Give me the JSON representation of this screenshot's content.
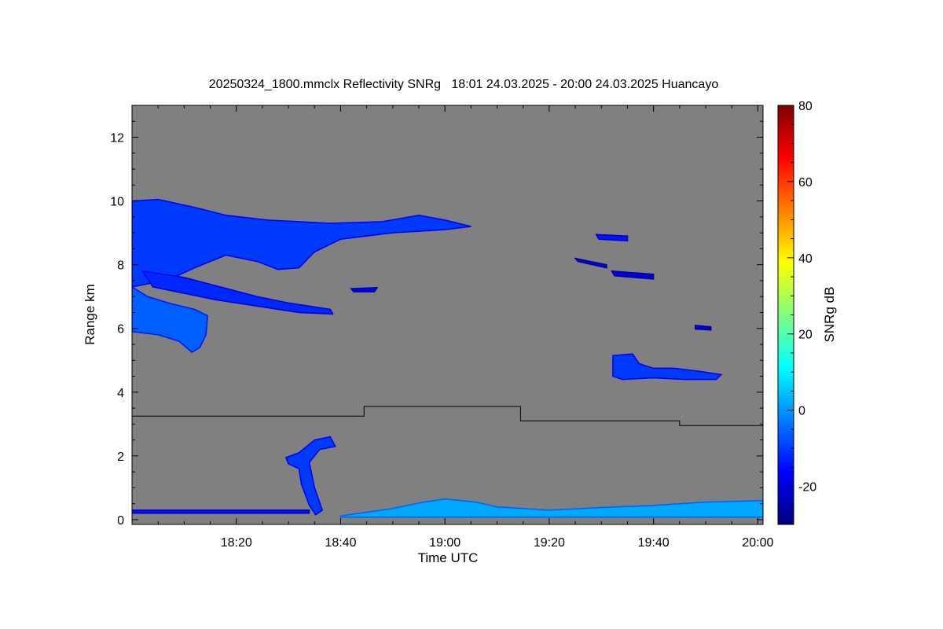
{
  "chart_data": {
    "type": "heatmap",
    "title": "20250324_1800.mmclx Reflectivity SNRg   18:01 24.03.2025 - 20:00 24.03.2025 Huancayo",
    "xlabel": "Time UTC",
    "ylabel": "Range km",
    "colorbar_label": "SNRg dB",
    "x_range_min": [
      0,
      121
    ],
    "y_range_km": [
      -0.15,
      13
    ],
    "color_range_db": [
      -30,
      80
    ],
    "x_ticks": [
      {
        "min": 20,
        "label": "18:20"
      },
      {
        "min": 40,
        "label": "18:40"
      },
      {
        "min": 60,
        "label": "19:00"
      },
      {
        "min": 80,
        "label": "19:20"
      },
      {
        "min": 100,
        "label": "19:40"
      },
      {
        "min": 120,
        "label": "20:00"
      }
    ],
    "y_ticks": [
      {
        "km": 0,
        "label": "0"
      },
      {
        "km": 2,
        "label": "2"
      },
      {
        "km": 4,
        "label": "4"
      },
      {
        "km": 6,
        "label": "6"
      },
      {
        "km": 8,
        "label": "8"
      },
      {
        "km": 10,
        "label": "10"
      },
      {
        "km": 12,
        "label": "12"
      }
    ],
    "colorbar_ticks": [
      {
        "db": -20,
        "label": "-20"
      },
      {
        "db": 0,
        "label": "0"
      },
      {
        "db": 20,
        "label": "20"
      },
      {
        "db": 40,
        "label": "40"
      },
      {
        "db": 60,
        "label": "60"
      },
      {
        "db": 80,
        "label": "80"
      }
    ],
    "background_color": "#808080",
    "colormap": [
      "#00007f",
      "#0000ff",
      "#007fff",
      "#00ffff",
      "#7fff7f",
      "#ffff00",
      "#ff7f00",
      "#ff0000",
      "#7f0000"
    ],
    "boundary_line": {
      "color": "#000000",
      "steps": [
        {
          "from_min": 0,
          "to_min": 44.5,
          "km": 3.25
        },
        {
          "from_min": 44.5,
          "to_min": 74.5,
          "km": 3.55
        },
        {
          "from_min": 74.5,
          "to_min": 105,
          "km": 3.1
        },
        {
          "from_min": 105,
          "to_min": 121,
          "km": 2.95
        }
      ]
    },
    "echo_regions": [
      {
        "name": "upper-cloud-deck",
        "snr_db": -10,
        "points": [
          [
            0,
            10.0
          ],
          [
            5,
            10.05
          ],
          [
            12,
            9.8
          ],
          [
            18,
            9.55
          ],
          [
            26,
            9.4
          ],
          [
            38,
            9.3
          ],
          [
            48,
            9.35
          ],
          [
            55,
            9.55
          ],
          [
            60,
            9.4
          ],
          [
            65,
            9.2
          ],
          [
            60,
            9.1
          ],
          [
            50,
            9.0
          ],
          [
            40,
            8.8
          ],
          [
            35,
            8.4
          ],
          [
            32,
            7.9
          ],
          [
            28,
            7.85
          ],
          [
            24,
            8.1
          ],
          [
            18,
            8.3
          ],
          [
            12,
            7.9
          ],
          [
            8,
            7.6
          ],
          [
            3,
            7.4
          ],
          [
            0,
            7.3
          ]
        ]
      },
      {
        "name": "mid-cloud-streamer",
        "snr_db": -12,
        "points": [
          [
            2,
            7.8
          ],
          [
            10,
            7.6
          ],
          [
            17,
            7.3
          ],
          [
            24,
            7.0
          ],
          [
            30,
            6.8
          ],
          [
            38,
            6.6
          ],
          [
            38.5,
            6.45
          ],
          [
            32,
            6.5
          ],
          [
            24,
            6.7
          ],
          [
            16,
            6.9
          ],
          [
            10,
            7.1
          ],
          [
            4,
            7.3
          ]
        ]
      },
      {
        "name": "lower-cloud-patch",
        "snr_db": -6,
        "points": [
          [
            0,
            7.3
          ],
          [
            3,
            7.0
          ],
          [
            7,
            6.8
          ],
          [
            12,
            6.6
          ],
          [
            14.5,
            6.4
          ],
          [
            14.2,
            5.8
          ],
          [
            13,
            5.4
          ],
          [
            11.5,
            5.25
          ],
          [
            9,
            5.6
          ],
          [
            5,
            5.8
          ],
          [
            0,
            5.9
          ]
        ]
      },
      {
        "name": "small-echo-1",
        "snr_db": -18,
        "points": [
          [
            42,
            7.25
          ],
          [
            47,
            7.28
          ],
          [
            46.5,
            7.15
          ],
          [
            42.5,
            7.15
          ]
        ]
      },
      {
        "name": "small-echo-2",
        "snr_db": -14,
        "points": [
          [
            89,
            8.95
          ],
          [
            95,
            8.9
          ],
          [
            95,
            8.75
          ],
          [
            89.5,
            8.8
          ]
        ]
      },
      {
        "name": "thin-layer-1",
        "snr_db": -20,
        "points": [
          [
            85,
            8.2
          ],
          [
            91,
            8.0
          ],
          [
            91,
            7.9
          ],
          [
            85.5,
            8.1
          ]
        ]
      },
      {
        "name": "thin-layer-2",
        "snr_db": -20,
        "points": [
          [
            92,
            7.8
          ],
          [
            100,
            7.7
          ],
          [
            100,
            7.55
          ],
          [
            92.5,
            7.65
          ]
        ]
      },
      {
        "name": "mid-cloud-right",
        "snr_db": -10,
        "points": [
          [
            92.2,
            5.15
          ],
          [
            96,
            5.2
          ],
          [
            97.2,
            4.9
          ],
          [
            100,
            4.75
          ],
          [
            104,
            4.75
          ],
          [
            109,
            4.65
          ],
          [
            113,
            4.55
          ],
          [
            112,
            4.4
          ],
          [
            106,
            4.4
          ],
          [
            100,
            4.45
          ],
          [
            94,
            4.4
          ],
          [
            92.2,
            4.5
          ]
        ]
      },
      {
        "name": "small-echo-3",
        "snr_db": -20,
        "points": [
          [
            108,
            6.1
          ],
          [
            111,
            6.05
          ],
          [
            111,
            5.95
          ],
          [
            108,
            5.98
          ]
        ]
      },
      {
        "name": "fallstreak",
        "snr_db": -10,
        "points": [
          [
            29.5,
            1.95
          ],
          [
            32,
            2.1
          ],
          [
            35,
            2.5
          ],
          [
            38,
            2.6
          ],
          [
            39,
            2.3
          ],
          [
            36,
            2.2
          ],
          [
            34,
            1.8
          ],
          [
            35,
            1.0
          ],
          [
            36.5,
            0.3
          ],
          [
            35.2,
            0.15
          ],
          [
            34,
            0.45
          ],
          [
            32.5,
            1.1
          ],
          [
            32,
            1.6
          ],
          [
            30,
            1.75
          ]
        ]
      },
      {
        "name": "low-clutter-line",
        "snr_db": -15,
        "points": [
          [
            0,
            0.3
          ],
          [
            34,
            0.3
          ],
          [
            34,
            0.2
          ],
          [
            0,
            0.2
          ]
        ]
      },
      {
        "name": "surface-clutter",
        "snr_db": 2,
        "points": [
          [
            40,
            0.12
          ],
          [
            50,
            0.35
          ],
          [
            56,
            0.55
          ],
          [
            60,
            0.65
          ],
          [
            66,
            0.55
          ],
          [
            70,
            0.4
          ],
          [
            80,
            0.3
          ],
          [
            90,
            0.38
          ],
          [
            100,
            0.45
          ],
          [
            110,
            0.55
          ],
          [
            121,
            0.6
          ],
          [
            121,
            0.08
          ],
          [
            40,
            0.08
          ]
        ]
      }
    ]
  }
}
